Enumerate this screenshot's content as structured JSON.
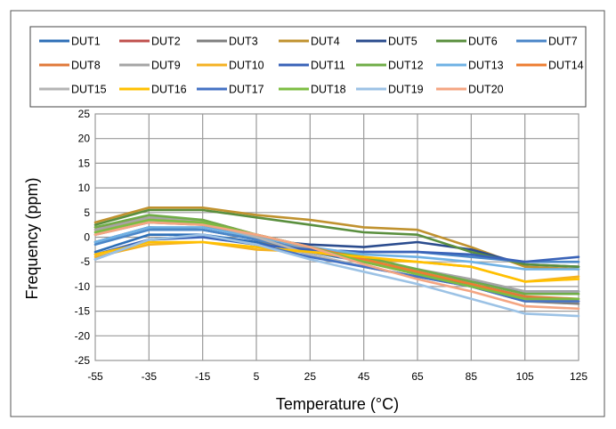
{
  "chart_data": {
    "type": "line",
    "xlabel": "Temperature (°C)",
    "ylabel": "Frequency (ppm)",
    "x": [
      -55,
      -35,
      -15,
      5,
      25,
      45,
      65,
      85,
      105,
      125
    ],
    "x_ticks": [
      "-55",
      "-35",
      "-15",
      "5",
      "25",
      "45",
      "65",
      "85",
      "105",
      "125"
    ],
    "ylim": [
      -25,
      25
    ],
    "y_ticks": [
      "25",
      "20",
      "15",
      "10",
      "5",
      "0",
      "-5",
      "-10",
      "-15",
      "-20",
      "-25"
    ],
    "grid": true,
    "legend_position": "top",
    "series": [
      {
        "name": "DUT1",
        "color": "#2e6fb7",
        "values": [
          -3.0,
          0.5,
          0.5,
          -1.0,
          -3.0,
          -5.0,
          -6.5,
          -9.0,
          -11.0,
          -11.0
        ]
      },
      {
        "name": "DUT2",
        "color": "#c0504d",
        "values": [
          2.0,
          4.0,
          3.5,
          0.5,
          -2.0,
          -5.0,
          -7.5,
          -9.5,
          -12.0,
          -13.0
        ]
      },
      {
        "name": "DUT3",
        "color": "#7f7f7f",
        "values": [
          0.5,
          3.0,
          2.5,
          -0.5,
          -3.5,
          -6.0,
          -8.0,
          -10.0,
          -13.0,
          -13.5
        ]
      },
      {
        "name": "DUT4",
        "color": "#c0922f",
        "values": [
          3.0,
          6.0,
          6.0,
          4.5,
          3.5,
          2.0,
          1.5,
          -2.0,
          -6.0,
          -6.5
        ]
      },
      {
        "name": "DUT5",
        "color": "#2b4c8e",
        "values": [
          -1.0,
          2.0,
          1.5,
          -0.5,
          -1.5,
          -2.0,
          -1.0,
          -2.5,
          -5.5,
          -6.0
        ]
      },
      {
        "name": "DUT6",
        "color": "#5a8f3e",
        "values": [
          2.5,
          5.5,
          5.5,
          4.0,
          2.5,
          1.0,
          0.5,
          -3.0,
          -5.5,
          -6.0
        ]
      },
      {
        "name": "DUT7",
        "color": "#4a86c8",
        "values": [
          -1.5,
          1.5,
          1.5,
          -0.5,
          -2.5,
          -3.0,
          -3.0,
          -4.0,
          -5.0,
          -5.0
        ]
      },
      {
        "name": "DUT8",
        "color": "#e0793a",
        "values": [
          1.5,
          3.5,
          3.0,
          0.5,
          -2.0,
          -5.0,
          -7.0,
          -9.5,
          -12.0,
          -12.5
        ]
      },
      {
        "name": "DUT9",
        "color": "#a5a5a5",
        "values": [
          1.5,
          4.0,
          3.5,
          0.5,
          -2.5,
          -5.0,
          -6.5,
          -8.5,
          -11.0,
          -11.0
        ]
      },
      {
        "name": "DUT10",
        "color": "#f4b223",
        "values": [
          -4.0,
          -1.5,
          -1.0,
          -2.5,
          -3.0,
          -4.5,
          -5.0,
          -6.0,
          -9.0,
          -8.0
        ]
      },
      {
        "name": "DUT11",
        "color": "#3a63b8",
        "values": [
          -3.5,
          -0.5,
          0.0,
          -1.5,
          -2.5,
          -3.0,
          -3.0,
          -3.5,
          -5.0,
          -4.0
        ]
      },
      {
        "name": "DUT12",
        "color": "#70ad47",
        "values": [
          2.0,
          4.5,
          3.5,
          0.5,
          -2.0,
          -4.0,
          -6.5,
          -9.0,
          -11.5,
          -11.5
        ]
      },
      {
        "name": "DUT13",
        "color": "#6fb1e4",
        "values": [
          -1.0,
          2.0,
          2.0,
          0.0,
          -2.0,
          -3.5,
          -4.0,
          -5.0,
          -6.5,
          -6.5
        ]
      },
      {
        "name": "DUT14",
        "color": "#ed7d31",
        "values": [
          1.0,
          3.5,
          3.0,
          0.5,
          -2.0,
          -4.5,
          -7.0,
          -9.5,
          -12.5,
          -13.0
        ]
      },
      {
        "name": "DUT15",
        "color": "#b4b4b4",
        "values": [
          1.0,
          3.5,
          3.0,
          0.0,
          -3.5,
          -6.0,
          -8.0,
          -10.0,
          -13.0,
          -13.0
        ]
      },
      {
        "name": "DUT16",
        "color": "#ffc000",
        "values": [
          -3.5,
          -1.0,
          -1.0,
          -2.0,
          -3.0,
          -4.0,
          -5.0,
          -6.0,
          -9.0,
          -8.5
        ]
      },
      {
        "name": "DUT17",
        "color": "#4472c4",
        "values": [
          -4.5,
          -0.5,
          0.5,
          -1.5,
          -4.0,
          -6.0,
          -8.0,
          -10.0,
          -13.0,
          -13.0
        ]
      },
      {
        "name": "DUT18",
        "color": "#7cbd42",
        "values": [
          1.0,
          3.5,
          3.0,
          0.5,
          -2.0,
          -5.0,
          -7.5,
          -10.0,
          -12.5,
          -12.5
        ]
      },
      {
        "name": "DUT19",
        "color": "#9cc2e5",
        "values": [
          -4.5,
          -0.5,
          0.5,
          -1.5,
          -4.5,
          -7.0,
          -9.5,
          -12.5,
          -15.5,
          -16.0
        ]
      },
      {
        "name": "DUT20",
        "color": "#f4a582",
        "values": [
          0.5,
          3.0,
          2.5,
          0.5,
          -2.0,
          -5.5,
          -8.5,
          -11.0,
          -14.0,
          -14.5
        ]
      }
    ]
  }
}
